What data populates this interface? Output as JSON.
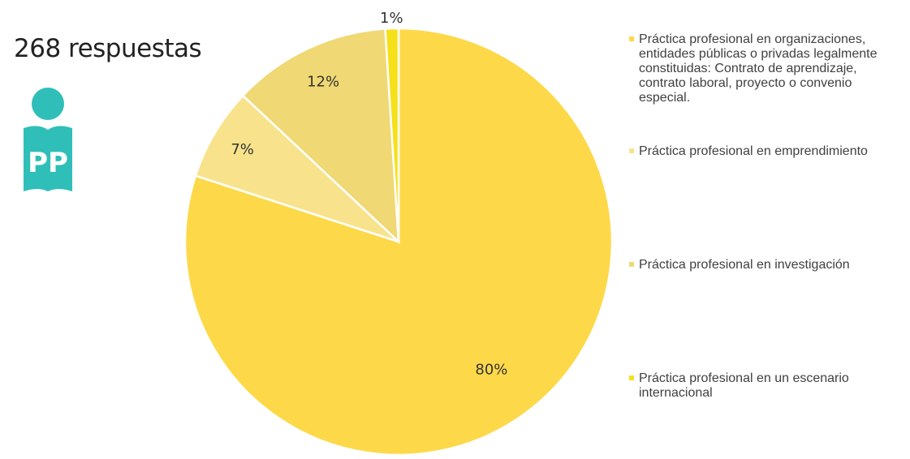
{
  "header": {
    "responses": "268 respuestas"
  },
  "logo": {
    "icon": "reading-person-icon",
    "text": "PP",
    "color": "#2fbfb8"
  },
  "chart_data": {
    "type": "pie",
    "title": "",
    "legend_position": "right",
    "slices": [
      {
        "label": "Práctica profesional en organizaciones, entidades públicas o privadas legalmente constituidas: Contrato de aprendizaje, contrato laboral, proyecto o convenio especial.",
        "value": 80,
        "display": "80%",
        "color": "#fdd94a"
      },
      {
        "label": "Práctica profesional en emprendimiento",
        "value": 7,
        "display": "7%",
        "color": "#f8e38c"
      },
      {
        "label": "Práctica profesional en investigación",
        "value": 12,
        "display": "12%",
        "color": "#f0d874"
      },
      {
        "label": "Práctica profesional en un escenario internacional",
        "value": 1,
        "display": "1%",
        "color": "#f5e01a"
      }
    ]
  }
}
